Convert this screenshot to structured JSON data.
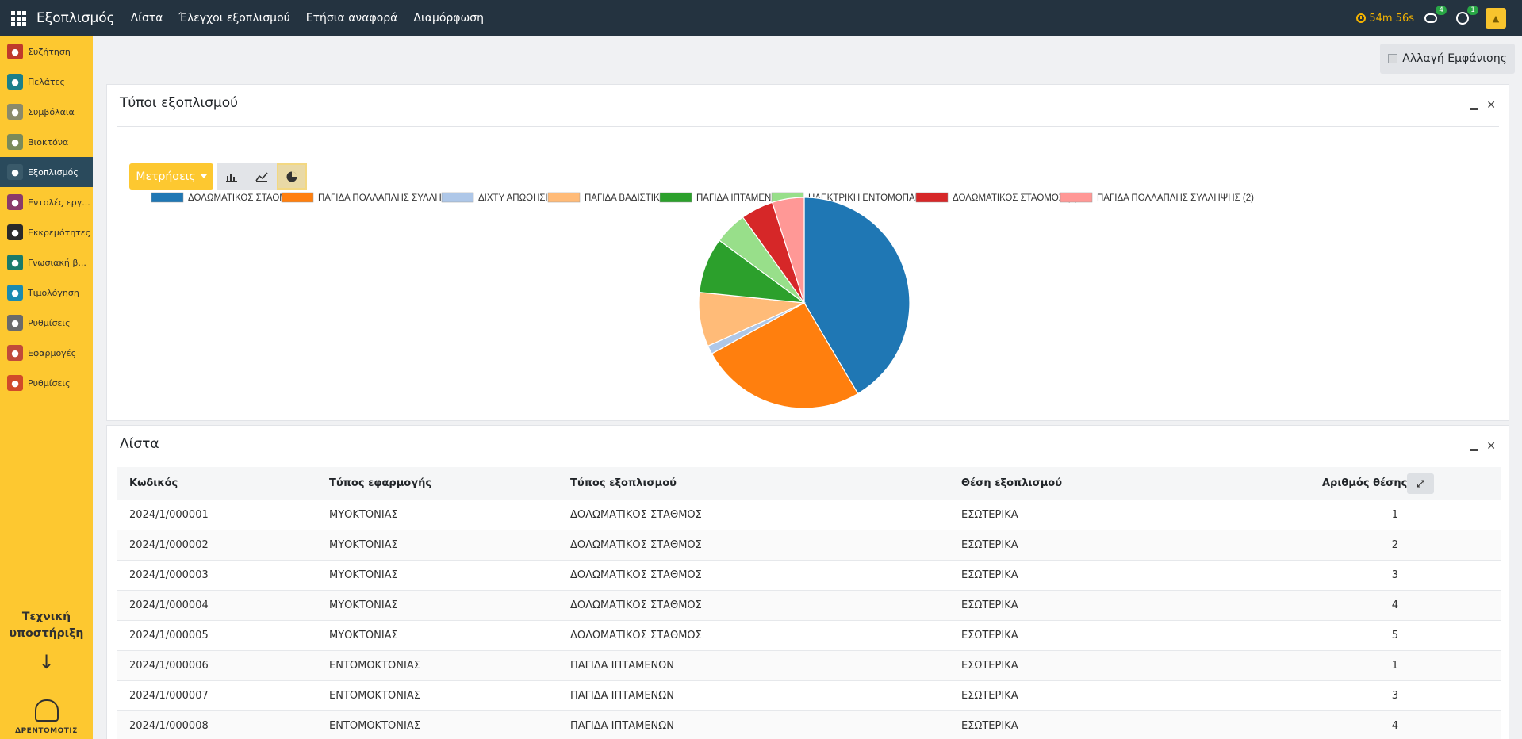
{
  "topbar": {
    "brand": "Εξοπλισμός",
    "menu": [
      "Λίστα",
      "Έλεγχοι εξοπλισμού",
      "Ετήσια αναφορά",
      "Διαμόρφωση"
    ],
    "timer": "54m 56s",
    "chat_count": "4",
    "activity_count": "1"
  },
  "sidebar": {
    "items": [
      {
        "label": "Συζήτηση",
        "icon": "chat-icon",
        "color": "#c0392b"
      },
      {
        "label": "Πελάτες",
        "icon": "users-icon",
        "color": "#1a7f8a"
      },
      {
        "label": "Συμβόλαια",
        "icon": "contract-icon",
        "color": "#8a8a6a"
      },
      {
        "label": "Βιοκτόνα",
        "icon": "biocide-icon",
        "color": "#7a8a5a"
      },
      {
        "label": "Εξοπλισμός",
        "icon": "tools-icon",
        "color": "#3a5a6a"
      },
      {
        "label": "Εντολές εργ...",
        "icon": "work-order-icon",
        "color": "#8a3a6a"
      },
      {
        "label": "Εκκρεμότητες",
        "icon": "pencil-icon",
        "color": "#2a2a2a"
      },
      {
        "label": "Γνωσιακή β...",
        "icon": "book-icon",
        "color": "#1a7a6a"
      },
      {
        "label": "Τιμολόγηση",
        "icon": "invoice-icon",
        "color": "#1a8ab0"
      },
      {
        "label": "Ρυθμίσεις",
        "icon": "gear-icon",
        "color": "#6a6a6a"
      },
      {
        "label": "Εφαρμογές",
        "icon": "apps-color-icon",
        "color": "#c04a3a"
      },
      {
        "label": "Ρυθμίσεις",
        "icon": "settings-color-icon",
        "color": "#d04a2a"
      }
    ],
    "active_index": 4,
    "support_line1": "Τεχνική",
    "support_line2": "υποστήριξη",
    "logo_text": "ΔΡΕΝΤΟΜΟΤΙΣ"
  },
  "toolbar": {
    "toggle_label": "Αλλαγή Εμφάνισης"
  },
  "chart_panel": {
    "title": "Τύποι εξοπλισμού",
    "measures_label": "Μετρήσεις"
  },
  "chart_data": {
    "type": "pie",
    "categories": [
      "ΔΟΛΩΜΑΤΙΚΟΣ ΣΤΑΘΜΟΣ",
      "ΠΑΓΙΔΑ ΠΟΛΛΑΠΛΗΣ ΣΥΛΛΗΨΗΣ",
      "ΔΙΧΤΥ ΑΠΩΘΗΣΗΣ",
      "ΠΑΓΙΔΑ ΒΑΔΙΣΤΙΚΩΝ",
      "ΠΑΓΙΔΑ ΙΠΤΑΜΕΝΩΝ",
      "ΗΛΕΚΤΡΙΚΗ ΕΝΤΟΜΟΠΑΓΙΔΑ",
      "ΔΟΛΩΜΑΤΙΚΟΣ ΣΤΑΘΜΟΣ (2)",
      "ΠΑΓΙΔΑ ΠΟΛΛΑΠΛΗΣ ΣΥΛΛΗΨΗΣ (2)"
    ],
    "values": [
      41.5,
      25.5,
      1.3,
      8.3,
      8.5,
      5.0,
      5.0,
      4.9
    ],
    "colors": [
      "#1f77b4",
      "#ff7f0e",
      "#aec7e8",
      "#ffbb78",
      "#2ca02c",
      "#98df8a",
      "#d62728",
      "#ff9896"
    ],
    "legend": "top",
    "title": ""
  },
  "list_panel": {
    "title": "Λίστα",
    "columns": [
      "Κωδικός",
      "Τύπος εφαρμογής",
      "Τύπος εξοπλισμού",
      "Θέση εξοπλισμού",
      "Αριθμός θέσης"
    ],
    "rows": [
      [
        "2024/1/000001",
        "ΜΥΟΚΤΟΝΙΑΣ",
        "ΔΟΛΩΜΑΤΙΚΟΣ ΣΤΑΘΜΟΣ",
        "ΕΣΩΤΕΡΙΚΑ",
        "1"
      ],
      [
        "2024/1/000002",
        "ΜΥΟΚΤΟΝΙΑΣ",
        "ΔΟΛΩΜΑΤΙΚΟΣ ΣΤΑΘΜΟΣ",
        "ΕΣΩΤΕΡΙΚΑ",
        "2"
      ],
      [
        "2024/1/000003",
        "ΜΥΟΚΤΟΝΙΑΣ",
        "ΔΟΛΩΜΑΤΙΚΟΣ ΣΤΑΘΜΟΣ",
        "ΕΣΩΤΕΡΙΚΑ",
        "3"
      ],
      [
        "2024/1/000004",
        "ΜΥΟΚΤΟΝΙΑΣ",
        "ΔΟΛΩΜΑΤΙΚΟΣ ΣΤΑΘΜΟΣ",
        "ΕΣΩΤΕΡΙΚΑ",
        "4"
      ],
      [
        "2024/1/000005",
        "ΜΥΟΚΤΟΝΙΑΣ",
        "ΔΟΛΩΜΑΤΙΚΟΣ ΣΤΑΘΜΟΣ",
        "ΕΣΩΤΕΡΙΚΑ",
        "5"
      ],
      [
        "2024/1/000006",
        "ΕΝΤΟΜΟΚΤΟΝΙΑΣ",
        "ΠΑΓΙΔΑ ΙΠΤΑΜΕΝΩΝ",
        "ΕΣΩΤΕΡΙΚΑ",
        "1"
      ],
      [
        "2024/1/000007",
        "ΕΝΤΟΜΟΚΤΟΝΙΑΣ",
        "ΠΑΓΙΔΑ ΙΠΤΑΜΕΝΩΝ",
        "ΕΣΩΤΕΡΙΚΑ",
        "3"
      ],
      [
        "2024/1/000008",
        "ΕΝΤΟΜΟΚΤΟΝΙΑΣ",
        "ΠΑΓΙΔΑ ΙΠΤΑΜΕΝΩΝ",
        "ΕΣΩΤΕΡΙΚΑ",
        "4"
      ]
    ]
  }
}
